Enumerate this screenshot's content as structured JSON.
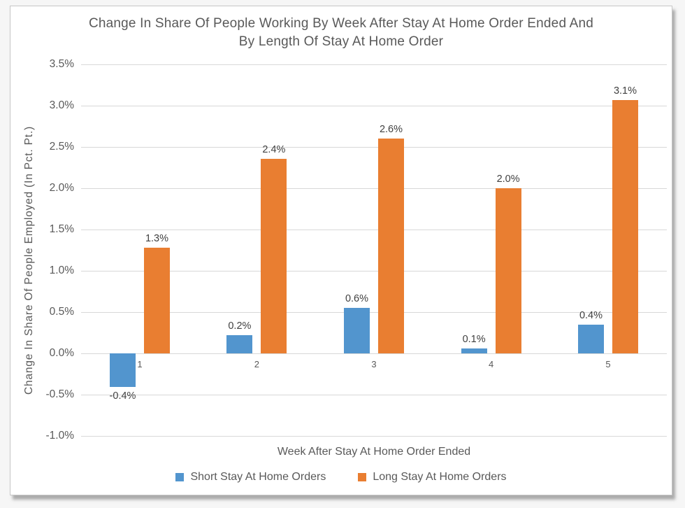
{
  "page": {
    "background": "#f6f6f6"
  },
  "card": {
    "background": "#ffffff",
    "border_color": "#c6c6c6"
  },
  "chart_data": {
    "type": "bar",
    "title": "Change In Share Of People Working By Week After Stay At Home Order Ended And By Length Of Stay At Home Order",
    "title_lines": [
      "Change In Share Of People Working By Week After Stay At Home Order Ended And",
      "By Length Of Stay At Home Order"
    ],
    "xlabel": "Week After Stay At Home Order Ended",
    "ylabel": "Change In Share Of People Employed (In Pct. Pt.)",
    "categories": [
      "1",
      "2",
      "3",
      "4",
      "5"
    ],
    "series": [
      {
        "name": "Short Stay At Home Orders",
        "color": "#5295CE",
        "values": [
          -0.41,
          0.22,
          0.55,
          0.06,
          0.35
        ],
        "data_labels": [
          "-0.4%",
          "0.2%",
          "0.6%",
          "0.1%",
          "0.4%"
        ]
      },
      {
        "name": "Long Stay At Home Orders",
        "color": "#E97E31",
        "values": [
          1.28,
          2.36,
          2.6,
          2.0,
          3.07
        ],
        "data_labels": [
          "1.3%",
          "2.4%",
          "2.6%",
          "2.0%",
          "3.1%"
        ]
      }
    ],
    "ylim": [
      -1.0,
      3.5
    ],
    "ytick_step": 0.5,
    "ytick_labels": [
      "3.5%",
      "3.0%",
      "2.5%",
      "2.0%",
      "1.5%",
      "1.0%",
      "0.5%",
      "0.0%",
      "-0.5%",
      "-1.0%"
    ],
    "grid": true,
    "gridline_color": "#d8d8d8",
    "legend_position": "bottom",
    "text_color": "#595959",
    "data_label_color": "#404040"
  }
}
